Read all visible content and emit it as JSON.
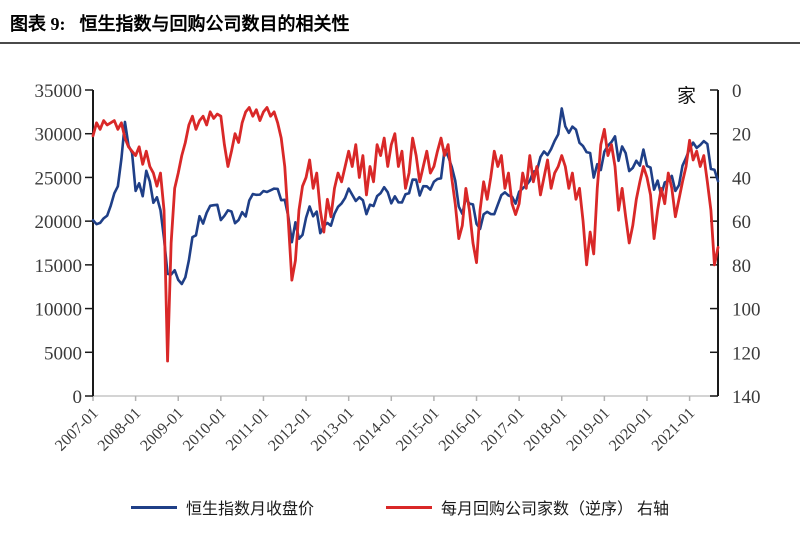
{
  "figure": {
    "label": "图表 9:",
    "title": "恒生指数与回购公司数目的相关性"
  },
  "chart_data": {
    "type": "line",
    "x_start": "2007-01",
    "x_interval": "month",
    "n_points": 177,
    "x_tick_labels": [
      "2007-01",
      "2008-01",
      "2009-01",
      "2010-01",
      "2011-01",
      "2012-01",
      "2013-01",
      "2014-01",
      "2015-01",
      "2016-01",
      "2017-01",
      "2018-01",
      "2019-01",
      "2020-01",
      "2021-01"
    ],
    "left_axis": {
      "min": 0,
      "max": 35000,
      "step": 5000,
      "tick_labels": [
        "35000",
        "30000",
        "25000",
        "20000",
        "15000",
        "10000",
        "5000",
        "0"
      ]
    },
    "right_axis": {
      "min": 0,
      "max": 140,
      "step": 20,
      "reversed": true,
      "unit": "家",
      "tick_labels": [
        "0",
        "20",
        "40",
        "60",
        "80",
        "100",
        "120",
        "140"
      ]
    },
    "grid": false,
    "legend_position": "bottom",
    "series": [
      {
        "name": "恒生指数月收盘价",
        "axis": "left",
        "color": "#1F3F87",
        "values": [
          20106,
          19652,
          19800,
          20319,
          20634,
          21773,
          23185,
          23984,
          27142,
          31352,
          28643,
          27813,
          23456,
          24332,
          22849,
          25755,
          24533,
          22102,
          22731,
          21262,
          18016,
          13969,
          13888,
          14387,
          13278,
          12812,
          13576,
          15521,
          18171,
          18378,
          20573,
          19724,
          20955,
          21753,
          21822,
          21873,
          20122,
          20609,
          21239,
          21109,
          19765,
          20129,
          21030,
          20536,
          22358,
          23096,
          23007,
          23035,
          23447,
          23338,
          23528,
          23721,
          23684,
          22398,
          22440,
          20535,
          17592,
          19865,
          17989,
          18434,
          20390,
          21680,
          20556,
          21095,
          18629,
          19441,
          19796,
          19483,
          20840,
          21641,
          22030,
          22657,
          23729,
          23020,
          22300,
          22737,
          22392,
          20803,
          21884,
          21731,
          22860,
          23206,
          23881,
          23306,
          22035,
          22837,
          22151,
          22134,
          23082,
          23191,
          24757,
          24742,
          22933,
          23998,
          23987,
          23605,
          24507,
          24823,
          24901,
          28133,
          27424,
          26250,
          24636,
          21671,
          20846,
          22640,
          21996,
          21914,
          19683,
          19112,
          20777,
          21067,
          20815,
          20794,
          21891,
          22977,
          23297,
          22935,
          22790,
          22001,
          23361,
          23741,
          24112,
          24615,
          25661,
          25765,
          27324,
          27970,
          27554,
          28246,
          29177,
          29919,
          32887,
          30845,
          30093,
          30808,
          30469,
          28955,
          28583,
          27889,
          27789,
          24980,
          26507,
          25846,
          27942,
          28633,
          29051,
          29699,
          26901,
          28543,
          27778,
          25725,
          26092,
          26907,
          26346,
          28190,
          26313,
          26130,
          23603,
          24644,
          22961,
          24427,
          24595,
          25177,
          23459,
          24107,
          26341,
          27231,
          28284,
          28980,
          28378,
          28705,
          29152,
          28828,
          25961,
          25879,
          24576
        ]
      },
      {
        "name": "每月回购公司家数（逆序） 右轴",
        "axis": "right",
        "color": "#D92828",
        "values": [
          21,
          15,
          18,
          14,
          16,
          15,
          14,
          18,
          15,
          22,
          26,
          28,
          30,
          26,
          34,
          28,
          35,
          38,
          44,
          38,
          55,
          124,
          70,
          45,
          38,
          30,
          24,
          16,
          12,
          18,
          14,
          12,
          16,
          10,
          13,
          11,
          12,
          25,
          35,
          28,
          20,
          24,
          15,
          10,
          8,
          12,
          9,
          14,
          10,
          8,
          12,
          10,
          15,
          22,
          35,
          60,
          87,
          78,
          55,
          44,
          40,
          32,
          45,
          38,
          55,
          65,
          50,
          58,
          45,
          38,
          42,
          35,
          28,
          35,
          25,
          40,
          30,
          48,
          35,
          42,
          25,
          30,
          22,
          35,
          25,
          20,
          35,
          28,
          45,
          38,
          22,
          30,
          42,
          35,
          28,
          38,
          35,
          28,
          22,
          30,
          25,
          40,
          52,
          68,
          62,
          45,
          55,
          70,
          79,
          55,
          42,
          50,
          40,
          28,
          35,
          30,
          45,
          38,
          52,
          57,
          52,
          38,
          45,
          30,
          42,
          35,
          48,
          40,
          32,
          45,
          38,
          35,
          30,
          35,
          45,
          38,
          50,
          45,
          60,
          80,
          65,
          75,
          45,
          25,
          18,
          30,
          25,
          35,
          55,
          45,
          58,
          70,
          62,
          50,
          42,
          35,
          40,
          48,
          68,
          55,
          45,
          52,
          38,
          45,
          58,
          50,
          42,
          35,
          23,
          32,
          28,
          35,
          30,
          42,
          55,
          80,
          72
        ]
      }
    ]
  },
  "legend": {
    "items": [
      {
        "label": "恒生指数月收盘价",
        "color": "#1F3F87"
      },
      {
        "label": "每月回购公司家数（逆序） 右轴",
        "color": "#D92828"
      }
    ]
  }
}
